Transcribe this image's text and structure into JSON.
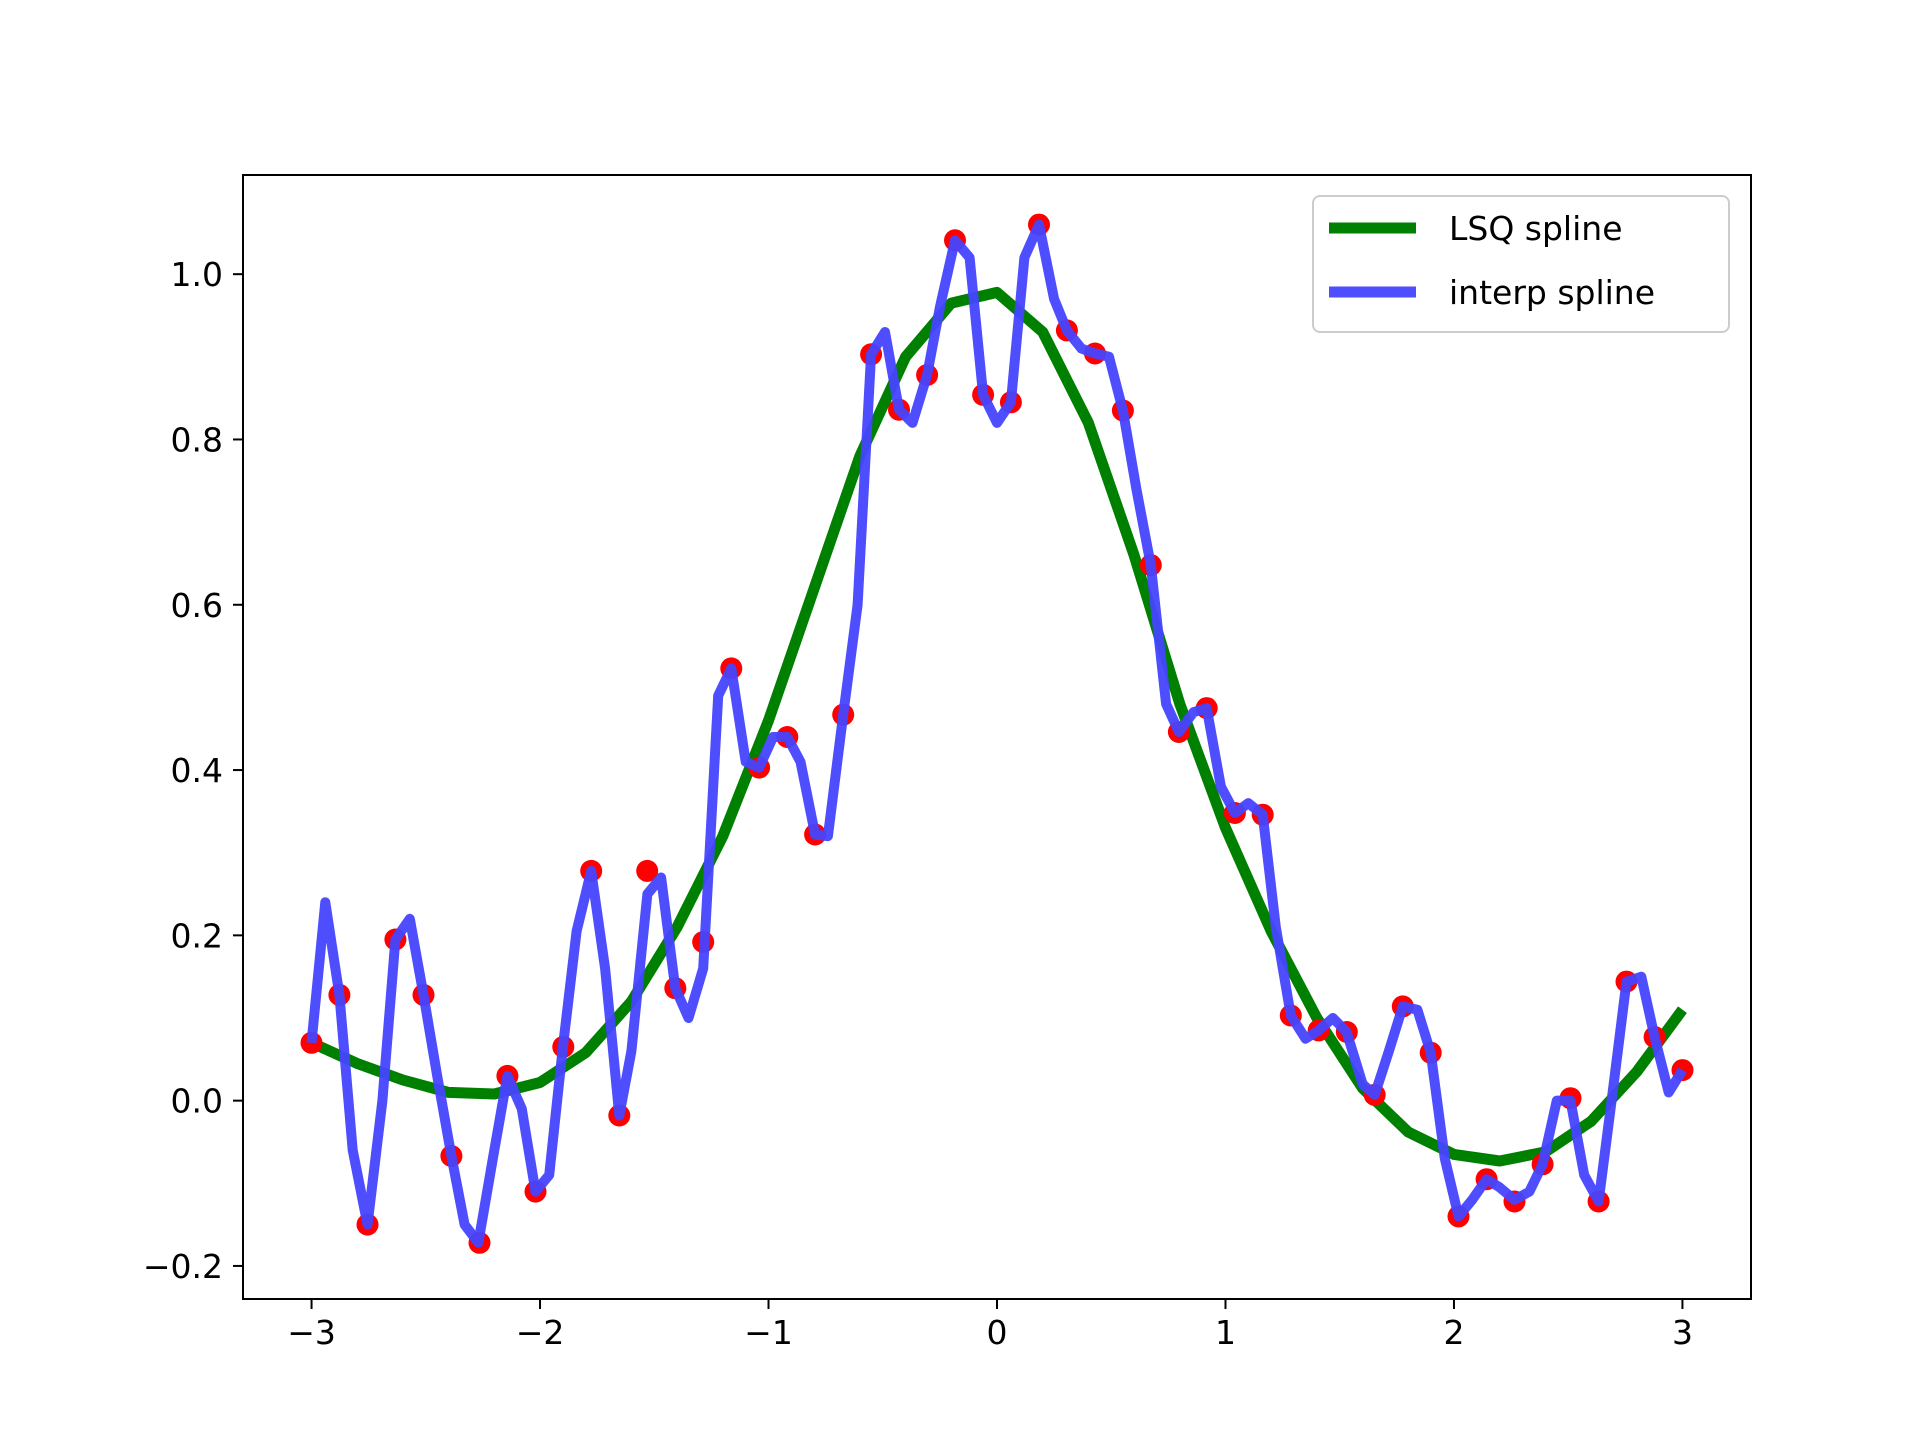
{
  "chart_data": {
    "type": "line",
    "title": "",
    "xlabel": "",
    "ylabel": "",
    "xlim": [
      -3.3,
      3.3
    ],
    "ylim": [
      -0.24,
      1.12
    ],
    "grid": false,
    "legend_position": "top-right",
    "x_ticks": [
      {
        "value": -3,
        "label": "−3"
      },
      {
        "value": -2,
        "label": "−2"
      },
      {
        "value": -1,
        "label": "−1"
      },
      {
        "value": 0,
        "label": "0"
      },
      {
        "value": 1,
        "label": "1"
      },
      {
        "value": 2,
        "label": "2"
      },
      {
        "value": 3,
        "label": "3"
      }
    ],
    "y_ticks": [
      {
        "value": -0.2,
        "label": "−0.2"
      },
      {
        "value": 0.0,
        "label": "0.0"
      },
      {
        "value": 0.2,
        "label": "0.2"
      },
      {
        "value": 0.4,
        "label": "0.4"
      },
      {
        "value": 0.6,
        "label": "0.6"
      },
      {
        "value": 0.8,
        "label": "0.8"
      },
      {
        "value": 1.0,
        "label": "1.0"
      }
    ],
    "series": [
      {
        "name": "LSQ spline",
        "kind": "line",
        "color": "#008000",
        "x": [
          -3.0,
          -2.8,
          -2.6,
          -2.4,
          -2.2,
          -2.0,
          -1.8,
          -1.6,
          -1.4,
          -1.2,
          -1.0,
          -0.8,
          -0.6,
          -0.4,
          -0.2,
          0.0,
          0.2,
          0.4,
          0.6,
          0.8,
          1.0,
          1.2,
          1.4,
          1.6,
          1.8,
          2.0,
          2.2,
          2.4,
          2.6,
          2.8,
          3.0
        ],
        "y": [
          0.07,
          0.045,
          0.025,
          0.01,
          0.008,
          0.022,
          0.058,
          0.12,
          0.21,
          0.32,
          0.46,
          0.62,
          0.78,
          0.9,
          0.965,
          0.978,
          0.93,
          0.82,
          0.66,
          0.48,
          0.33,
          0.205,
          0.1,
          0.015,
          -0.038,
          -0.065,
          -0.073,
          -0.062,
          -0.025,
          0.035,
          0.11
        ]
      },
      {
        "name": "interp spline",
        "kind": "line",
        "color": "#4444ff",
        "x": [
          -3.0,
          -2.94,
          -2.878,
          -2.82,
          -2.755,
          -2.69,
          -2.633,
          -2.57,
          -2.51,
          -2.45,
          -2.388,
          -2.33,
          -2.27,
          -2.2,
          -2.143,
          -2.08,
          -2.02,
          -1.96,
          -1.9,
          -1.84,
          -1.776,
          -1.715,
          -1.653,
          -1.6,
          -1.53,
          -1.47,
          -1.408,
          -1.35,
          -1.286,
          -1.22,
          -1.163,
          -1.1,
          -1.041,
          -0.98,
          -0.918,
          -0.86,
          -0.796,
          -0.74,
          -0.673,
          -0.61,
          -0.551,
          -0.49,
          -0.429,
          -0.37,
          -0.306,
          -0.25,
          -0.184,
          -0.12,
          -0.061,
          0.0,
          0.061,
          0.12,
          0.184,
          0.25,
          0.306,
          0.37,
          0.429,
          0.49,
          0.551,
          0.61,
          0.673,
          0.74,
          0.796,
          0.86,
          0.918,
          0.98,
          1.041,
          1.1,
          1.163,
          1.22,
          1.286,
          1.35,
          1.408,
          1.47,
          1.53,
          1.6,
          1.653,
          1.715,
          1.776,
          1.84,
          1.898,
          1.96,
          2.02,
          2.08,
          2.143,
          2.2,
          2.265,
          2.33,
          2.388,
          2.45,
          2.51,
          2.57,
          2.633,
          2.69,
          2.755,
          2.82,
          2.878,
          2.94,
          3.0
        ],
        "y": [
          0.07,
          0.24,
          0.128,
          -0.06,
          -0.15,
          0.0,
          0.195,
          0.22,
          0.128,
          0.03,
          -0.067,
          -0.15,
          -0.172,
          -0.06,
          0.03,
          -0.01,
          -0.11,
          -0.09,
          0.065,
          0.205,
          0.278,
          0.16,
          -0.018,
          0.06,
          0.25,
          0.27,
          0.136,
          0.1,
          0.16,
          0.49,
          0.523,
          0.41,
          0.403,
          0.44,
          0.44,
          0.41,
          0.322,
          0.32,
          0.467,
          0.6,
          0.903,
          0.93,
          0.836,
          0.82,
          0.878,
          0.96,
          1.041,
          1.02,
          0.854,
          0.82,
          0.845,
          1.02,
          1.06,
          0.97,
          0.932,
          0.91,
          0.904,
          0.9,
          0.835,
          0.74,
          0.648,
          0.48,
          0.446,
          0.47,
          0.475,
          0.38,
          0.348,
          0.36,
          0.346,
          0.21,
          0.103,
          0.075,
          0.085,
          0.1,
          0.083,
          0.02,
          0.007,
          0.06,
          0.114,
          0.11,
          0.058,
          -0.07,
          -0.14,
          -0.12,
          -0.095,
          -0.105,
          -0.12,
          -0.11,
          -0.077,
          0.0,
          0.0,
          -0.09,
          -0.122,
          0.0,
          0.144,
          0.15,
          0.077,
          0.01,
          0.037
        ]
      },
      {
        "name": "",
        "kind": "scatter",
        "color": "#ff0000",
        "x": [
          -3.0,
          -2.878,
          -2.755,
          -2.633,
          -2.51,
          -2.388,
          -2.265,
          -2.143,
          -2.02,
          -1.898,
          -1.776,
          -1.653,
          -1.531,
          -1.408,
          -1.286,
          -1.163,
          -1.041,
          -0.918,
          -0.796,
          -0.673,
          -0.551,
          -0.429,
          -0.306,
          -0.184,
          -0.061,
          0.061,
          0.184,
          0.306,
          0.429,
          0.551,
          0.673,
          0.796,
          0.918,
          1.041,
          1.163,
          1.286,
          1.408,
          1.531,
          1.653,
          1.776,
          1.898,
          2.02,
          2.143,
          2.265,
          2.388,
          2.51,
          2.633,
          2.755,
          2.878,
          3.0
        ],
        "y": [
          0.07,
          0.128,
          -0.15,
          0.195,
          0.128,
          -0.067,
          -0.172,
          0.03,
          -0.11,
          0.065,
          0.278,
          -0.018,
          0.278,
          0.136,
          0.192,
          0.523,
          0.403,
          0.44,
          0.322,
          0.467,
          0.903,
          0.836,
          0.878,
          1.041,
          0.854,
          0.845,
          1.06,
          0.932,
          0.904,
          0.835,
          0.648,
          0.446,
          0.475,
          0.348,
          0.346,
          0.103,
          0.085,
          0.083,
          0.007,
          0.114,
          0.058,
          -0.14,
          -0.095,
          -0.122,
          -0.077,
          0.003,
          -0.122,
          0.144,
          0.077,
          0.037
        ]
      }
    ]
  }
}
